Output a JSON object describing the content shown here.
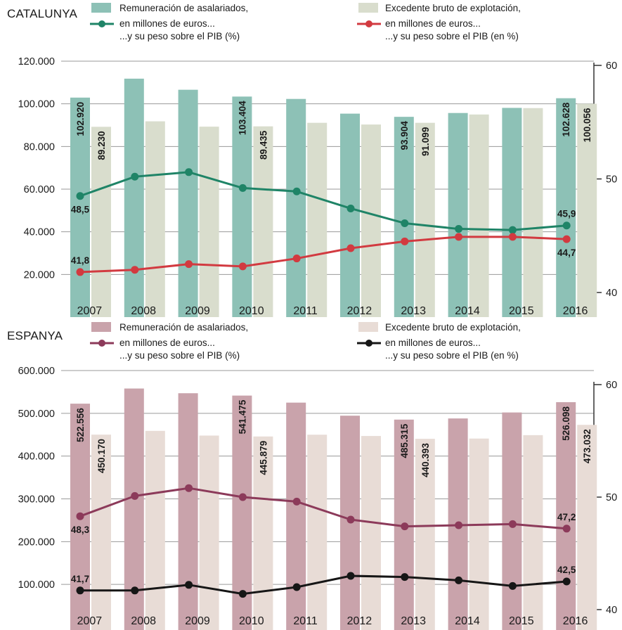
{
  "chart_data": [
    {
      "type": "bar",
      "region": "CATALUNYA",
      "colors": {
        "bar1": "#8dc1b6",
        "bar2": "#d9ddcd",
        "line1": "#1f8467",
        "line2": "#d23a40"
      },
      "legend": {
        "bar1": "Remuneración de asalariados,",
        "bar2": "Excedente bruto de explotación,",
        "line1_text": "en millones de euros...",
        "line1_sub": "...y su peso sobre el PIB (%)",
        "line2_text": "en millones de euros...",
        "line2_sub": "...y su peso sobre el PIB (en %)"
      },
      "categories": [
        "2007",
        "2008",
        "2009",
        "2010",
        "2011",
        "2012",
        "2013",
        "2014",
        "2015",
        "2016"
      ],
      "ylim": [
        0,
        120000
      ],
      "y_ticks": [
        "120.000",
        "100.000",
        "80.000",
        "60.000",
        "40.000",
        "20.000"
      ],
      "y_tick_values": [
        120000,
        100000,
        80000,
        60000,
        40000,
        20000
      ],
      "y2lim": [
        38.5,
        60
      ],
      "y2_ticks": [
        "60",
        "50",
        "40"
      ],
      "y2_tick_values": [
        60,
        50,
        40
      ],
      "series": [
        {
          "values": [
            102920,
            111800,
            106600,
            103404,
            102300,
            95400,
            93904,
            95700,
            98100,
            102628
          ],
          "labels": [
            "102.920",
            "",
            "",
            "103.404",
            "",
            "",
            "93.904",
            "",
            "",
            "102.628"
          ]
        },
        {
          "values": [
            89230,
            91800,
            89300,
            89435,
            91100,
            90300,
            91099,
            95000,
            98000,
            100056
          ],
          "labels": [
            "89.230",
            "",
            "",
            "89.435",
            "",
            "",
            "91.099",
            "",
            "",
            "100.056"
          ]
        }
      ],
      "line_series": [
        {
          "values": [
            48.5,
            50.2,
            50.6,
            49.2,
            48.9,
            47.4,
            46.1,
            45.6,
            45.5,
            45.9
          ],
          "labels": [
            "48,5",
            "",
            "",
            "",
            "",
            "",
            "",
            "",
            "",
            "45,9"
          ]
        },
        {
          "values": [
            41.8,
            42.0,
            42.5,
            42.3,
            43.0,
            43.9,
            44.5,
            44.9,
            44.9,
            44.7
          ],
          "labels": [
            "41,8",
            "",
            "",
            "",
            "",
            "",
            "",
            "",
            "",
            "44,7"
          ]
        }
      ]
    },
    {
      "type": "bar",
      "region": "ESPANYA",
      "colors": {
        "bar1": "#c9a3ab",
        "bar2": "#e8dcd6",
        "line1": "#8c3a5a",
        "line2": "#161616"
      },
      "legend": {
        "bar1": "Remuneración de asalariados,",
        "bar2": "Excedente bruto de explotación,",
        "line1_text": "en millones de euros...",
        "line1_sub": "...y su peso sobre el PIB (%)",
        "line2_text": "en millones de euros...",
        "line2_sub": "...y su peso sobre el PIB (en %)"
      },
      "categories": [
        "2007",
        "2008",
        "2009",
        "2010",
        "2011",
        "2012",
        "2013",
        "2014",
        "2015",
        "2016"
      ],
      "ylim": [
        0,
        600000
      ],
      "y_ticks": [
        "600.000",
        "500.000",
        "400.000",
        "300.000",
        "200.000",
        "100.000"
      ],
      "y_tick_values": [
        600000,
        500000,
        400000,
        300000,
        200000,
        100000
      ],
      "y2lim": [
        39.3,
        60
      ],
      "y2_ticks": [
        "60",
        "50",
        "40"
      ],
      "y2_tick_values": [
        60,
        50,
        40
      ],
      "series": [
        {
          "values": [
            522556,
            558000,
            547000,
            541475,
            525000,
            494500,
            485315,
            488000,
            502000,
            526098
          ],
          "labels": [
            "522.556",
            "",
            "",
            "541.475",
            "",
            "",
            "485.315",
            "",
            "",
            "526.098"
          ]
        },
        {
          "values": [
            450170,
            459000,
            448000,
            445879,
            450000,
            447000,
            440393,
            441000,
            449000,
            473032
          ],
          "labels": [
            "450.170",
            "",
            "",
            "445.879",
            "",
            "",
            "440.393",
            "",
            "",
            "473.032"
          ]
        }
      ],
      "line_series": [
        {
          "values": [
            48.3,
            50.1,
            50.8,
            50.0,
            49.6,
            48.0,
            47.4,
            47.5,
            47.6,
            47.2
          ],
          "labels": [
            "48,3",
            "",
            "",
            "",
            "",
            "",
            "",
            "",
            "",
            "47,2"
          ]
        },
        {
          "values": [
            41.7,
            41.7,
            42.2,
            41.4,
            42.0,
            43.0,
            42.9,
            42.6,
            42.1,
            42.5
          ],
          "labels": [
            "41,7",
            "",
            "",
            "",
            "",
            "",
            "",
            "",
            "",
            "42,5"
          ]
        }
      ]
    }
  ]
}
